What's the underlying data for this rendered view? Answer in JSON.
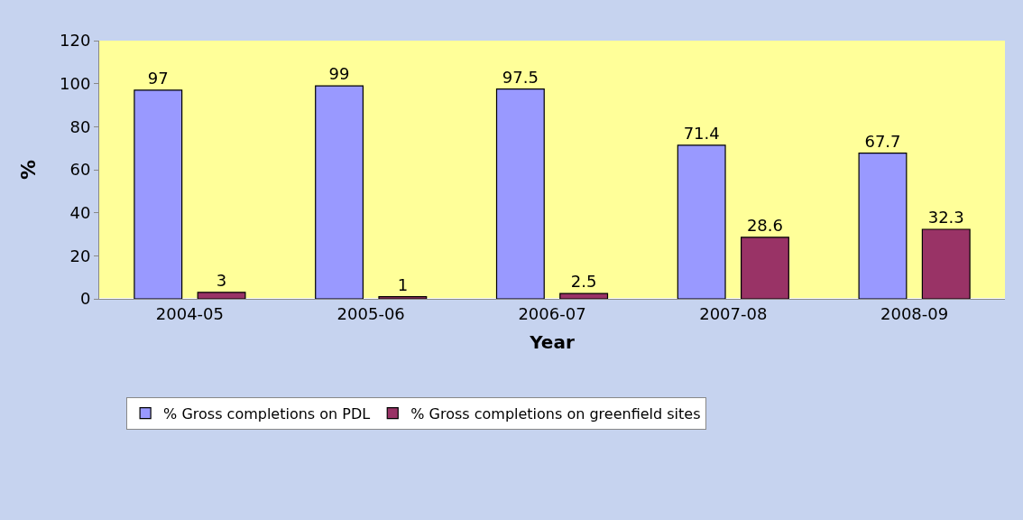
{
  "chart_data": {
    "type": "bar",
    "xlabel": "Year",
    "ylabel": "%",
    "categories": [
      "2004-05",
      "2005-06",
      "2006-07",
      "2007-08",
      "2008-09"
    ],
    "series": [
      {
        "name": "% Gross completions on PDL",
        "color": "#9999ff",
        "values": [
          97,
          99,
          97.5,
          71.4,
          67.7
        ]
      },
      {
        "name": "% Gross completions on greenfield sites",
        "color": "#993366",
        "values": [
          3,
          1,
          2.5,
          28.6,
          32.3
        ]
      }
    ],
    "ylim": [
      0,
      120
    ],
    "yticks": [
      0,
      20,
      40,
      60,
      80,
      100,
      120
    ],
    "data_labels": true,
    "grid": false,
    "legend": "bottom"
  }
}
